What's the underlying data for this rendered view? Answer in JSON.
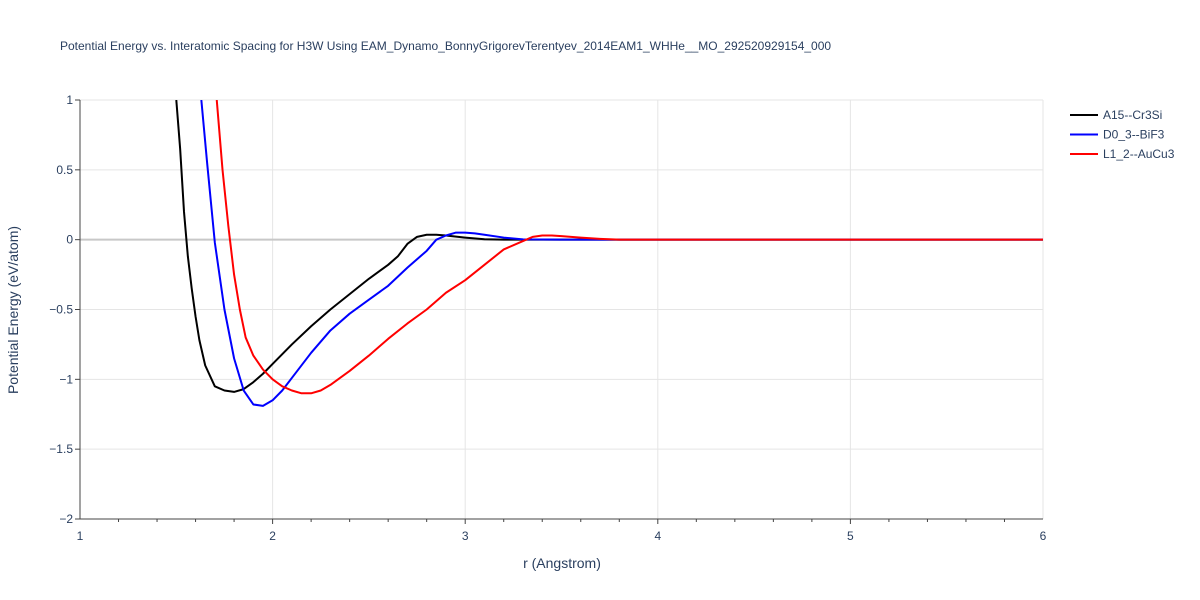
{
  "chart_data": {
    "type": "line",
    "title": "Potential Energy vs. Interatomic Spacing for H3W Using EAM_Dynamo_BonnyGrigorevTerentyev_2014EAM1_WHHe__MO_292520929154_000",
    "xlabel": "r (Angstrom)",
    "ylabel": "Potential Energy (eV/atom)",
    "xlim": [
      1,
      6
    ],
    "ylim": [
      -2,
      1
    ],
    "xticks": [
      1,
      2,
      3,
      4,
      5,
      6
    ],
    "xtick_labels": [
      "1",
      "2",
      "3",
      "4",
      "5",
      "6"
    ],
    "yticks": [
      -2,
      -1.5,
      -1,
      -0.5,
      0,
      0.5,
      1
    ],
    "ytick_labels": [
      "−2",
      "−1.5",
      "−1",
      "−0.5",
      "0",
      "0.5",
      "1"
    ],
    "grid": true,
    "legend_position": "top-right",
    "series": [
      {
        "name": "A15--Cr3Si",
        "color": "#000000",
        "x": [
          1.5,
          1.52,
          1.54,
          1.56,
          1.58,
          1.6,
          1.62,
          1.65,
          1.7,
          1.75,
          1.8,
          1.85,
          1.9,
          1.95,
          2.0,
          2.1,
          2.2,
          2.3,
          2.4,
          2.5,
          2.6,
          2.65,
          2.7,
          2.75,
          2.8,
          2.85,
          2.9,
          3.0,
          3.1,
          3.2,
          3.3,
          3.5,
          4.0,
          5.0,
          6.0
        ],
        "y": [
          1.0,
          0.65,
          0.2,
          -0.12,
          -0.35,
          -0.55,
          -0.72,
          -0.9,
          -1.05,
          -1.08,
          -1.09,
          -1.07,
          -1.02,
          -0.96,
          -0.89,
          -0.75,
          -0.62,
          -0.5,
          -0.39,
          -0.28,
          -0.18,
          -0.12,
          -0.03,
          0.02,
          0.035,
          0.035,
          0.03,
          0.015,
          0.003,
          0.0,
          0.0,
          0.0,
          0.0,
          0.0,
          0.0
        ]
      },
      {
        "name": "D0_3--BiF3",
        "color": "#0000ff",
        "x": [
          1.63,
          1.66,
          1.7,
          1.75,
          1.8,
          1.85,
          1.9,
          1.95,
          2.0,
          2.05,
          2.1,
          2.2,
          2.3,
          2.4,
          2.5,
          2.6,
          2.7,
          2.8,
          2.85,
          2.9,
          2.95,
          3.0,
          3.05,
          3.1,
          3.2,
          3.3,
          3.5,
          4.0,
          5.0,
          6.0
        ],
        "y": [
          1.0,
          0.55,
          -0.02,
          -0.5,
          -0.85,
          -1.08,
          -1.18,
          -1.19,
          -1.15,
          -1.08,
          -0.99,
          -0.81,
          -0.65,
          -0.53,
          -0.43,
          -0.33,
          -0.2,
          -0.08,
          0.0,
          0.03,
          0.05,
          0.05,
          0.045,
          0.035,
          0.015,
          0.002,
          0.0,
          0.0,
          0.0,
          0.0
        ]
      },
      {
        "name": "L1_2--AuCu3",
        "color": "#ff0000",
        "x": [
          1.71,
          1.74,
          1.77,
          1.8,
          1.83,
          1.86,
          1.9,
          1.95,
          2.0,
          2.05,
          2.1,
          2.15,
          2.2,
          2.25,
          2.3,
          2.4,
          2.5,
          2.6,
          2.7,
          2.8,
          2.9,
          3.0,
          3.1,
          3.2,
          3.3,
          3.35,
          3.4,
          3.45,
          3.5,
          3.6,
          3.7,
          3.8,
          4.0,
          5.0,
          6.0
        ],
        "y": [
          1.0,
          0.5,
          0.1,
          -0.25,
          -0.5,
          -0.7,
          -0.83,
          -0.93,
          -1.0,
          -1.05,
          -1.08,
          -1.1,
          -1.1,
          -1.08,
          -1.04,
          -0.94,
          -0.83,
          -0.71,
          -0.6,
          -0.5,
          -0.38,
          -0.29,
          -0.18,
          -0.07,
          -0.01,
          0.02,
          0.03,
          0.03,
          0.025,
          0.015,
          0.006,
          0.0,
          0.0,
          0.0,
          0.0
        ]
      }
    ]
  }
}
